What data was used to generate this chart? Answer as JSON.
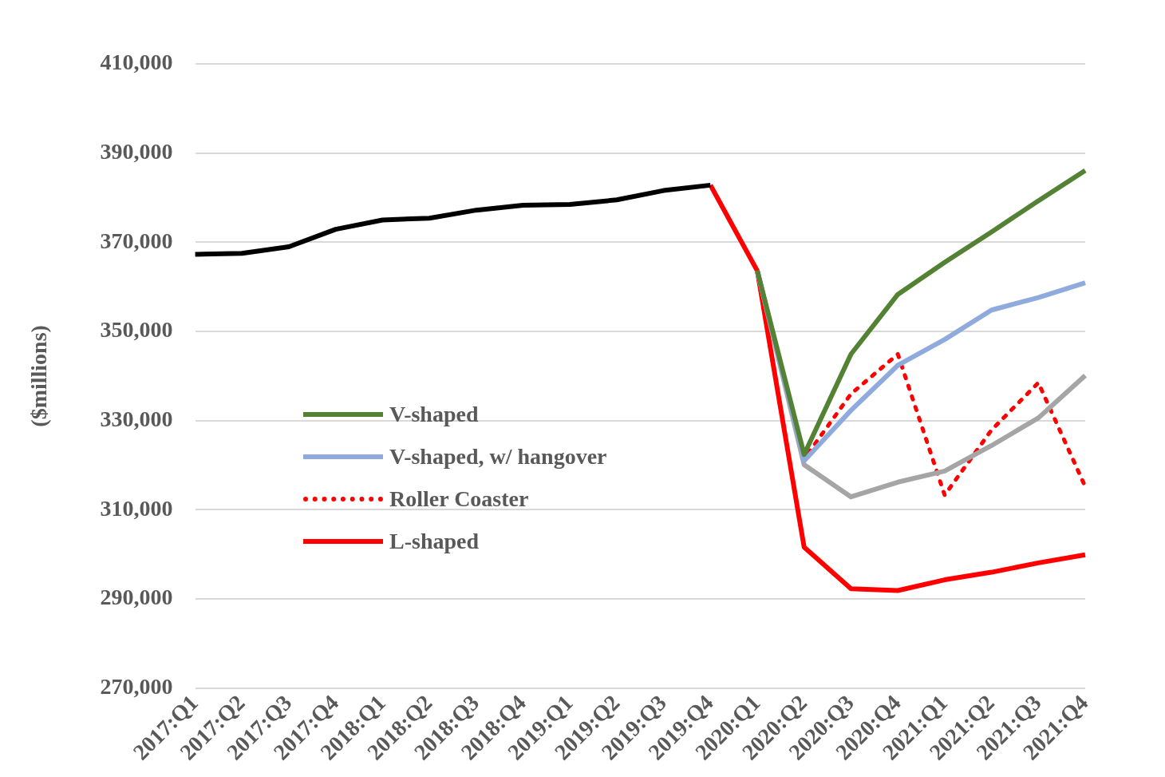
{
  "chart_data": {
    "type": "line",
    "ylabel": "($millions)",
    "categories": [
      "2017:Q1",
      "2017:Q2",
      "2017:Q3",
      "2017:Q4",
      "2018:Q1",
      "2018:Q2",
      "2018:Q3",
      "2018:Q4",
      "2019:Q1",
      "2019:Q2",
      "2019:Q3",
      "2019:Q4",
      "2020:Q1",
      "2020:Q2",
      "2020:Q3",
      "2020:Q4",
      "2021:Q1",
      "2021:Q2",
      "2021:Q3",
      "2021:Q4"
    ],
    "ylim": [
      270000,
      410000
    ],
    "yticks": [
      {
        "value": 270000,
        "label": "270,000"
      },
      {
        "value": 290000,
        "label": "290,000"
      },
      {
        "value": 310000,
        "label": "310,000"
      },
      {
        "value": 330000,
        "label": "330,000"
      },
      {
        "value": 350000,
        "label": "350,000"
      },
      {
        "value": 370000,
        "label": "370,000"
      },
      {
        "value": 390000,
        "label": "390,000"
      },
      {
        "value": 410000,
        "label": "410,000"
      }
    ],
    "grid": "y",
    "legend": "bottom left",
    "marker": "none",
    "series": [
      {
        "color": "#000000",
        "values": [
          367300,
          367500,
          369000,
          372900,
          375000,
          375400,
          377200,
          378300,
          378500,
          379500,
          381600,
          382800,
          null,
          null,
          null,
          null,
          null,
          null,
          null,
          null
        ]
      },
      {
        "name": "V-shaped",
        "color": "#548235",
        "values": [
          null,
          null,
          null,
          null,
          null,
          null,
          null,
          null,
          null,
          null,
          null,
          null,
          363600,
          322400,
          344900,
          358300,
          365500,
          372300,
          379300,
          386100
        ]
      },
      {
        "name": "V-shaped, w/ hangover",
        "color": "#8faadc",
        "values": [
          null,
          null,
          null,
          null,
          null,
          null,
          null,
          null,
          null,
          null,
          null,
          null,
          363600,
          321000,
          332300,
          342400,
          348200,
          354800,
          357600,
          360900
        ]
      },
      {
        "color": "#a5a5a5",
        "values": [
          null,
          null,
          null,
          null,
          null,
          null,
          null,
          null,
          null,
          null,
          null,
          null,
          363600,
          320100,
          312900,
          316200,
          318700,
          324400,
          330600,
          340100
        ]
      },
      {
        "name": "Roller Coaster",
        "color": "#ff0000",
        "line_style": "dotted",
        "values": [
          null,
          null,
          null,
          null,
          null,
          null,
          null,
          null,
          null,
          null,
          null,
          null,
          363600,
          321400,
          336000,
          344900,
          313300,
          327900,
          338500,
          315200
        ]
      },
      {
        "name": "L-shaped",
        "color": "#ff0000",
        "values": [
          null,
          null,
          null,
          null,
          null,
          null,
          null,
          null,
          null,
          null,
          null,
          382800,
          363600,
          301600,
          292300,
          291900,
          294300,
          296000,
          298100,
          299900
        ]
      }
    ]
  }
}
